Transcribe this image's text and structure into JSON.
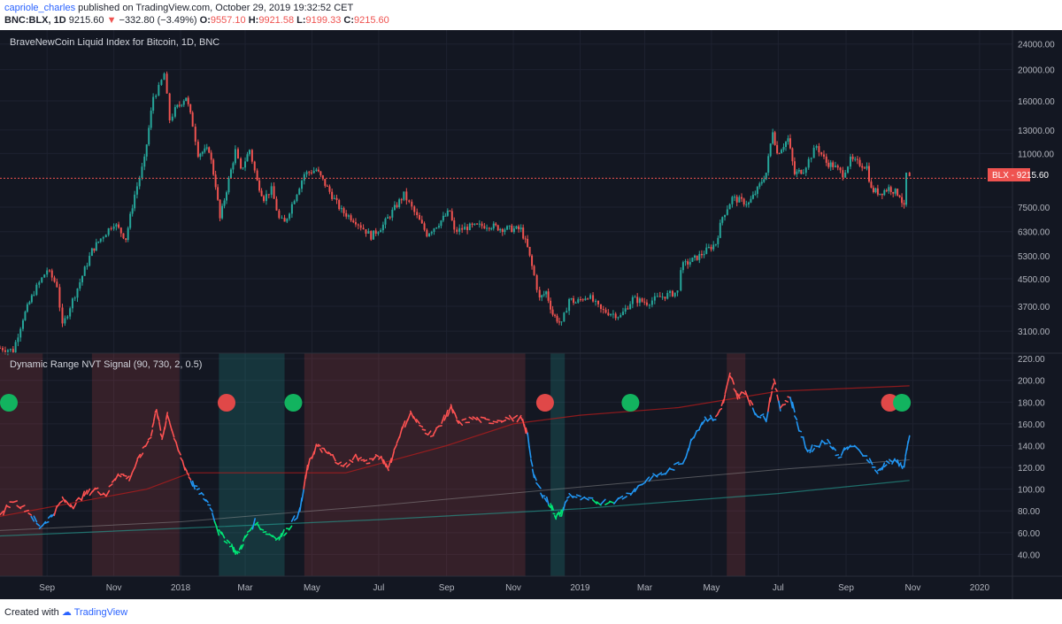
{
  "header": {
    "user": "capriole_charles",
    "published_text": "published on TradingView.com, October 29, 2019 19:32:52 CET",
    "symbol_timeframe": "BNC:BLX, 1D",
    "price": "9215.60",
    "arrow": "▼",
    "change": "−332.80 (−3.49%)",
    "o_label": "O:",
    "o_value": "9557.10",
    "h_label": "H:",
    "h_value": "9921.58",
    "l_label": "L:",
    "l_value": "9199.33",
    "c_label": "C:",
    "c_value": "9215.60"
  },
  "footer": {
    "created_with": "Created with",
    "brand": "TradingView"
  },
  "colors": {
    "background": "#131722",
    "up_candle": "#26a69a",
    "down_candle": "#ef5350",
    "nvt_high": "#ff5252",
    "nvt_mid": "#2196f3",
    "nvt_low": "#00e676",
    "signal_red": "#e04848",
    "signal_green": "#12b35f"
  },
  "chart_data": [
    {
      "type": "candlestick",
      "title": "BraveNewCoin Liquid Index for Bitcoin, 1D, BNC",
      "y_scale": "log",
      "ylim": [
        2700,
        26000
      ],
      "y_ticks": [
        "24000.00",
        "20000.00",
        "16000.00",
        "13000.00",
        "11000.00",
        "7500.00",
        "6300.00",
        "5300.00",
        "4500.00",
        "3700.00",
        "3100.00"
      ],
      "price_label": "BLX - 9215.60",
      "last_price": 9215.6,
      "x_range": [
        "2017-07-20",
        "2020-01-31"
      ],
      "close_series": [
        [
          "2017-07-20",
          2750
        ],
        [
          "2017-08-01",
          2700
        ],
        [
          "2017-08-10",
          3400
        ],
        [
          "2017-08-20",
          4100
        ],
        [
          "2017-09-01",
          4800
        ],
        [
          "2017-09-10",
          4300
        ],
        [
          "2017-09-15",
          3200
        ],
        [
          "2017-09-22",
          3700
        ],
        [
          "2017-10-01",
          4400
        ],
        [
          "2017-10-12",
          5500
        ],
        [
          "2017-10-20",
          6000
        ],
        [
          "2017-11-01",
          6700
        ],
        [
          "2017-11-12",
          6000
        ],
        [
          "2017-11-20",
          8200
        ],
        [
          "2017-11-29",
          10500
        ],
        [
          "2017-12-07",
          16500
        ],
        [
          "2017-12-12",
          17500
        ],
        [
          "2017-12-17",
          19400
        ],
        [
          "2017-12-22",
          14000
        ],
        [
          "2017-12-27",
          15000
        ],
        [
          "2018-01-06",
          16500
        ],
        [
          "2018-01-12",
          13500
        ],
        [
          "2018-01-17",
          11000
        ],
        [
          "2018-01-27",
          11300
        ],
        [
          "2018-02-02",
          8800
        ],
        [
          "2018-02-06",
          6900
        ],
        [
          "2018-02-12",
          8500
        ],
        [
          "2018-02-20",
          11200
        ],
        [
          "2018-02-25",
          9700
        ],
        [
          "2018-03-05",
          11300
        ],
        [
          "2018-03-12",
          9000
        ],
        [
          "2018-03-18",
          8000
        ],
        [
          "2018-03-25",
          8500
        ],
        [
          "2018-04-01",
          6900
        ],
        [
          "2018-04-06",
          6700
        ],
        [
          "2018-04-15",
          8000
        ],
        [
          "2018-04-24",
          9500
        ],
        [
          "2018-05-05",
          9800
        ],
        [
          "2018-05-15",
          8600
        ],
        [
          "2018-05-28",
          7300
        ],
        [
          "2018-06-10",
          6800
        ],
        [
          "2018-06-24",
          6100
        ],
        [
          "2018-07-05",
          6600
        ],
        [
          "2018-07-24",
          8200
        ],
        [
          "2018-08-05",
          7000
        ],
        [
          "2018-08-14",
          6200
        ],
        [
          "2018-08-25",
          6700
        ],
        [
          "2018-09-04",
          7300
        ],
        [
          "2018-09-08",
          6300
        ],
        [
          "2018-09-20",
          6500
        ],
        [
          "2018-10-10",
          6600
        ],
        [
          "2018-10-20",
          6450
        ],
        [
          "2018-11-08",
          6400
        ],
        [
          "2018-11-14",
          5600
        ],
        [
          "2018-11-20",
          4600
        ],
        [
          "2018-11-25",
          3900
        ],
        [
          "2018-12-01",
          4100
        ],
        [
          "2018-12-07",
          3500
        ],
        [
          "2018-12-15",
          3250
        ],
        [
          "2018-12-22",
          3900
        ],
        [
          "2018-12-28",
          3800
        ],
        [
          "2019-01-08",
          4000
        ],
        [
          "2019-01-20",
          3600
        ],
        [
          "2019-02-07",
          3450
        ],
        [
          "2019-02-18",
          3900
        ],
        [
          "2019-03-03",
          3800
        ],
        [
          "2019-03-15",
          3950
        ],
        [
          "2019-03-31",
          4100
        ],
        [
          "2019-04-03",
          4900
        ],
        [
          "2019-04-20",
          5300
        ],
        [
          "2019-05-05",
          5800
        ],
        [
          "2019-05-11",
          7000
        ],
        [
          "2019-05-20",
          8000
        ],
        [
          "2019-06-04",
          7700
        ],
        [
          "2019-06-12",
          8500
        ],
        [
          "2019-06-20",
          9600
        ],
        [
          "2019-06-26",
          13000
        ],
        [
          "2019-06-30",
          11000
        ],
        [
          "2019-07-10",
          12200
        ],
        [
          "2019-07-16",
          9500
        ],
        [
          "2019-07-24",
          9800
        ],
        [
          "2019-08-05",
          11600
        ],
        [
          "2019-08-14",
          10300
        ],
        [
          "2019-08-20",
          10100
        ],
        [
          "2019-08-29",
          9500
        ],
        [
          "2019-09-05",
          10500
        ],
        [
          "2019-09-20",
          10000
        ],
        [
          "2019-09-24",
          8500
        ],
        [
          "2019-10-02",
          8300
        ],
        [
          "2019-10-10",
          8600
        ],
        [
          "2019-10-20",
          8200
        ],
        [
          "2019-10-24",
          7450
        ],
        [
          "2019-10-26",
          9500
        ],
        [
          "2019-10-29",
          9215.6
        ]
      ]
    },
    {
      "type": "line",
      "title": "Dynamic Range NVT Signal (90, 730, 2, 0.5)",
      "ylim": [
        20,
        225
      ],
      "y_ticks": [
        "220.00",
        "200.00",
        "180.00",
        "160.00",
        "140.00",
        "120.00",
        "100.00",
        "80.00",
        "60.00",
        "40.00"
      ],
      "x_ticks": [
        "Sep",
        "Nov",
        "2018",
        "Mar",
        "May",
        "Jul",
        "Sep",
        "Nov",
        "2019",
        "Mar",
        "May",
        "Jul",
        "Sep",
        "Nov",
        "2020"
      ],
      "nvt_series": [
        [
          "2017-07-20",
          75
        ],
        [
          "2017-08-01",
          90
        ],
        [
          "2017-08-15",
          80
        ],
        [
          "2017-08-25",
          65
        ],
        [
          "2017-09-05",
          75
        ],
        [
          "2017-09-15",
          90
        ],
        [
          "2017-09-25",
          85
        ],
        [
          "2017-10-05",
          95
        ],
        [
          "2017-10-15",
          100
        ],
        [
          "2017-10-25",
          95
        ],
        [
          "2017-11-05",
          115
        ],
        [
          "2017-11-15",
          110
        ],
        [
          "2017-11-25",
          130
        ],
        [
          "2017-12-05",
          150
        ],
        [
          "2017-12-10",
          175
        ],
        [
          "2017-12-15",
          145
        ],
        [
          "2017-12-20",
          170
        ],
        [
          "2017-12-28",
          140
        ],
        [
          "2018-01-05",
          120
        ],
        [
          "2018-01-12",
          105
        ],
        [
          "2018-01-20",
          95
        ],
        [
          "2018-01-28",
          85
        ],
        [
          "2018-02-05",
          60
        ],
        [
          "2018-02-15",
          50
        ],
        [
          "2018-02-22",
          40
        ],
        [
          "2018-03-01",
          55
        ],
        [
          "2018-03-10",
          70
        ],
        [
          "2018-03-20",
          60
        ],
        [
          "2018-04-01",
          55
        ],
        [
          "2018-04-10",
          65
        ],
        [
          "2018-04-20",
          80
        ],
        [
          "2018-04-27",
          120
        ],
        [
          "2018-05-05",
          140
        ],
        [
          "2018-05-12",
          135
        ],
        [
          "2018-05-20",
          130
        ],
        [
          "2018-05-30",
          120
        ],
        [
          "2018-06-10",
          130
        ],
        [
          "2018-06-20",
          125
        ],
        [
          "2018-07-01",
          130
        ],
        [
          "2018-07-10",
          120
        ],
        [
          "2018-07-20",
          150
        ],
        [
          "2018-07-30",
          170
        ],
        [
          "2018-08-10",
          155
        ],
        [
          "2018-08-20",
          150
        ],
        [
          "2018-08-30",
          165
        ],
        [
          "2018-09-05",
          175
        ],
        [
          "2018-09-12",
          160
        ],
        [
          "2018-09-25",
          165
        ],
        [
          "2018-10-10",
          162
        ],
        [
          "2018-10-25",
          165
        ],
        [
          "2018-11-08",
          165
        ],
        [
          "2018-11-14",
          150
        ],
        [
          "2018-11-20",
          110
        ],
        [
          "2018-11-28",
          95
        ],
        [
          "2018-12-05",
          85
        ],
        [
          "2018-12-10",
          75
        ],
        [
          "2018-12-15",
          78
        ],
        [
          "2018-12-22",
          95
        ],
        [
          "2019-01-05",
          90
        ],
        [
          "2019-01-20",
          88
        ],
        [
          "2019-02-05",
          90
        ],
        [
          "2019-02-20",
          100
        ],
        [
          "2019-03-05",
          110
        ],
        [
          "2019-03-20",
          115
        ],
        [
          "2019-04-05",
          125
        ],
        [
          "2019-04-15",
          150
        ],
        [
          "2019-04-25",
          165
        ],
        [
          "2019-05-05",
          165
        ],
        [
          "2019-05-12",
          180
        ],
        [
          "2019-05-18",
          205
        ],
        [
          "2019-05-25",
          185
        ],
        [
          "2019-06-01",
          190
        ],
        [
          "2019-06-10",
          170
        ],
        [
          "2019-06-20",
          165
        ],
        [
          "2019-06-27",
          200
        ],
        [
          "2019-07-03",
          175
        ],
        [
          "2019-07-12",
          185
        ],
        [
          "2019-07-20",
          155
        ],
        [
          "2019-07-28",
          135
        ],
        [
          "2019-08-05",
          140
        ],
        [
          "2019-08-15",
          145
        ],
        [
          "2019-08-25",
          130
        ],
        [
          "2019-09-05",
          140
        ],
        [
          "2019-09-20",
          130
        ],
        [
          "2019-09-30",
          115
        ],
        [
          "2019-10-08",
          125
        ],
        [
          "2019-10-18",
          125
        ],
        [
          "2019-10-24",
          120
        ],
        [
          "2019-10-29",
          150
        ]
      ],
      "avg_series": [
        [
          "2017-07-20",
          75
        ],
        [
          "2017-12-01",
          100
        ],
        [
          "2018-01-10",
          115
        ],
        [
          "2018-06-01",
          115
        ],
        [
          "2018-09-01",
          140
        ],
        [
          "2018-11-01",
          160
        ],
        [
          "2019-01-01",
          168
        ],
        [
          "2019-04-01",
          175
        ],
        [
          "2019-07-01",
          190
        ],
        [
          "2019-10-29",
          195
        ]
      ],
      "low_band_series": [
        [
          "2017-07-20",
          57
        ],
        [
          "2018-01-01",
          64
        ],
        [
          "2018-07-01",
          72
        ],
        [
          "2019-01-01",
          82
        ],
        [
          "2019-07-01",
          96
        ],
        [
          "2019-10-29",
          108
        ]
      ],
      "mid_band_series": [
        [
          "2017-07-20",
          62
        ],
        [
          "2018-01-01",
          70
        ],
        [
          "2018-07-01",
          85
        ],
        [
          "2019-01-01",
          102
        ],
        [
          "2019-07-01",
          118
        ],
        [
          "2019-10-29",
          127
        ]
      ],
      "signals": [
        {
          "date": "2017-07-22",
          "type": "buy"
        },
        {
          "date": "2018-02-12",
          "type": "sell"
        },
        {
          "date": "2018-04-14",
          "type": "buy"
        },
        {
          "date": "2018-11-30",
          "type": "sell"
        },
        {
          "date": "2019-02-16",
          "type": "buy"
        },
        {
          "date": "2019-10-11",
          "type": "sell"
        },
        {
          "date": "2019-10-22",
          "type": "buy"
        }
      ],
      "red_zones": [
        [
          "2017-07-20",
          "2017-08-28"
        ],
        [
          "2017-10-12",
          "2017-12-31"
        ],
        [
          "2018-04-24",
          "2018-11-12"
        ],
        [
          "2019-05-15",
          "2019-06-01"
        ]
      ],
      "green_zones": [
        [
          "2018-02-05",
          "2018-04-06"
        ],
        [
          "2018-12-05",
          "2018-12-18"
        ]
      ]
    }
  ]
}
